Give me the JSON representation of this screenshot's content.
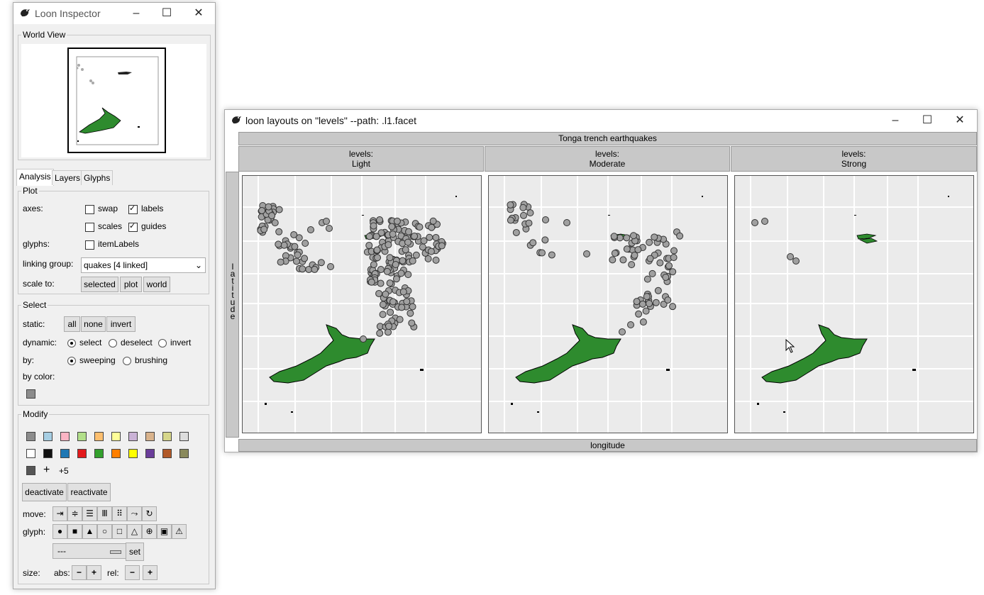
{
  "inspector": {
    "title": "Loon Inspector",
    "world_view_label": "World View",
    "tabs": [
      "Analysis",
      "Layers",
      "Glyphs"
    ],
    "plot": {
      "group_label": "Plot",
      "axes_label": "axes:",
      "swap_label": "swap",
      "swap_checked": false,
      "labels_label": "labels",
      "labels_checked": true,
      "scales_label": "scales",
      "scales_checked": false,
      "guides_label": "guides",
      "guides_checked": true,
      "glyphs_label": "glyphs:",
      "item_labels_label": "itemLabels",
      "item_labels_checked": false,
      "linking_group_label": "linking group:",
      "linking_group_value": "quakes  [4 linked]",
      "scale_to_label": "scale to:",
      "scale_buttons": [
        "selected",
        "plot",
        "world"
      ]
    },
    "select": {
      "group_label": "Select",
      "static_label": "static:",
      "static_buttons": [
        "all",
        "none",
        "invert"
      ],
      "dynamic_label": "dynamic:",
      "dynamic_options": [
        "select",
        "deselect",
        "invert"
      ],
      "dynamic_selected": "select",
      "by_label": "by:",
      "by_options": [
        "sweeping",
        "brushing"
      ],
      "by_selected": "sweeping",
      "by_color_label": "by color:",
      "by_color_swatch": "#8c8c8c"
    },
    "modify": {
      "group_label": "Modify",
      "colors_row1": [
        "#8c8c8c",
        "#a6cee3",
        "#fbb4c4",
        "#b2df8a",
        "#fdbf6f",
        "#ffff99",
        "#cab2d6",
        "#d9b38c",
        "#d6d68a",
        "#dddddd"
      ],
      "colors_row2": [
        "#ffffff",
        "#111111",
        "#1f78b4",
        "#e31a1c",
        "#33a02c",
        "#ff7f00",
        "#ffff00",
        "#6a3d9a",
        "#b15928",
        "#8a8a5c"
      ],
      "colors_row3_swatch": "#555555",
      "add_label": "+",
      "more_label": "+5",
      "deactivate_label": "deactivate",
      "reactivate_label": "reactivate",
      "move_label": "move:",
      "move_icons": [
        "⇥",
        "≑",
        "☰",
        "Ⅲ",
        "⠿",
        "⤳",
        "↻"
      ],
      "glyph_label": "glyph:",
      "glyph_icons": [
        "●",
        "■",
        "▲",
        "○",
        "□",
        "△",
        "⊕",
        "▣",
        "⚠"
      ],
      "glyph_select_value": "---",
      "set_label": "set",
      "size_label": "size:",
      "abs_label": "abs:",
      "rel_label": "rel:",
      "minus": "−",
      "plus": "+"
    }
  },
  "facet": {
    "title": "loon layouts on \"levels\" --path: .l1.facet",
    "main_title": "Tonga trench earthquakes",
    "xlabel": "longitude",
    "ylabel": "latitude",
    "panels": [
      {
        "line1": "levels:",
        "line2": "Light"
      },
      {
        "line1": "levels:",
        "line2": "Moderate"
      },
      {
        "line1": "levels:",
        "line2": "Strong"
      }
    ],
    "colors": {
      "land": "#2e8b2e",
      "point": "#a0a0a0",
      "panel_bg": "#ebebeb",
      "header": "#c8c8c8"
    }
  }
}
